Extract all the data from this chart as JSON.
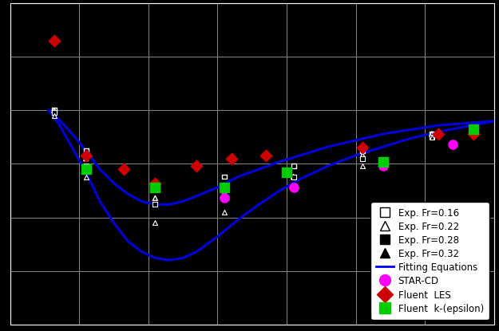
{
  "xlim": [
    0,
    3.5
  ],
  "ylim": [
    -2,
    1
  ],
  "xticks": [
    0,
    0.5,
    1.0,
    1.5,
    2.0,
    2.5,
    3.0,
    3.5
  ],
  "yticks": [
    -2.0,
    -1.5,
    -1.0,
    -0.5,
    0.0,
    0.5,
    1.0
  ],
  "bg_color": "#000000",
  "curve_color": "#0000dd",
  "grid_color": "#888888",
  "exp_fr016": [
    [
      0.32,
      0.0
    ],
    [
      0.55,
      -0.38
    ],
    [
      1.05,
      -0.68
    ],
    [
      1.55,
      -0.62
    ],
    [
      2.05,
      -0.52
    ],
    [
      2.55,
      -0.38
    ],
    [
      3.05,
      -0.22
    ],
    [
      3.35,
      -0.18
    ]
  ],
  "exp_fr022": [
    [
      0.32,
      0.0
    ],
    [
      0.55,
      -0.45
    ],
    [
      1.05,
      -0.82
    ],
    [
      1.55,
      -0.75
    ],
    [
      2.05,
      -0.62
    ],
    [
      2.55,
      -0.42
    ],
    [
      3.05,
      -0.22
    ],
    [
      3.35,
      -0.18
    ]
  ],
  "exp_fr028": [
    [
      0.32,
      -0.02
    ],
    [
      0.55,
      -0.52
    ],
    [
      1.05,
      -0.88
    ],
    [
      1.55,
      -0.82
    ],
    [
      2.05,
      -0.62
    ],
    [
      2.55,
      -0.45
    ],
    [
      3.05,
      -0.25
    ],
    [
      3.35,
      -0.18
    ]
  ],
  "exp_fr032": [
    [
      0.32,
      -0.05
    ],
    [
      0.55,
      -0.62
    ],
    [
      1.05,
      -1.05
    ],
    [
      1.55,
      -0.95
    ],
    [
      2.05,
      -0.72
    ],
    [
      2.55,
      -0.52
    ],
    [
      3.05,
      -0.25
    ],
    [
      3.35,
      -0.18
    ]
  ],
  "star_cd": [
    [
      1.55,
      -0.82
    ],
    [
      2.05,
      -0.72
    ],
    [
      2.7,
      -0.52
    ],
    [
      3.2,
      -0.32
    ]
  ],
  "fluent_les": [
    [
      0.32,
      0.65
    ],
    [
      0.55,
      -0.42
    ],
    [
      0.82,
      -0.55
    ],
    [
      1.05,
      -0.68
    ],
    [
      1.35,
      -0.52
    ],
    [
      1.6,
      -0.45
    ],
    [
      1.85,
      -0.42
    ],
    [
      2.55,
      -0.35
    ],
    [
      3.1,
      -0.22
    ],
    [
      3.35,
      -0.22
    ]
  ],
  "fluent_ke": [
    [
      0.55,
      -0.55
    ],
    [
      1.05,
      -0.72
    ],
    [
      1.55,
      -0.72
    ],
    [
      2.0,
      -0.58
    ],
    [
      2.7,
      -0.48
    ],
    [
      3.35,
      -0.18
    ]
  ],
  "upper_curve_x": [
    0.28,
    0.35,
    0.45,
    0.55,
    0.65,
    0.75,
    0.85,
    0.95,
    1.05,
    1.15,
    1.25,
    1.35,
    1.5,
    1.65,
    1.8,
    1.95,
    2.1,
    2.3,
    2.5,
    2.7,
    2.9,
    3.1,
    3.3,
    3.5
  ],
  "upper_curve_y": [
    0.0,
    -0.08,
    -0.22,
    -0.38,
    -0.55,
    -0.68,
    -0.78,
    -0.85,
    -0.88,
    -0.88,
    -0.85,
    -0.8,
    -0.72,
    -0.62,
    -0.55,
    -0.48,
    -0.42,
    -0.34,
    -0.28,
    -0.22,
    -0.18,
    -0.14,
    -0.12,
    -0.1
  ],
  "lower_curve_x": [
    0.28,
    0.35,
    0.45,
    0.55,
    0.65,
    0.75,
    0.85,
    0.95,
    1.05,
    1.15,
    1.25,
    1.35,
    1.5,
    1.65,
    1.8,
    1.95,
    2.1,
    2.3,
    2.5,
    2.7,
    2.9,
    3.1,
    3.3,
    3.5
  ],
  "lower_curve_y": [
    0.0,
    -0.12,
    -0.35,
    -0.58,
    -0.85,
    -1.05,
    -1.22,
    -1.32,
    -1.38,
    -1.4,
    -1.38,
    -1.32,
    -1.18,
    -1.02,
    -0.88,
    -0.75,
    -0.64,
    -0.52,
    -0.42,
    -0.34,
    -0.26,
    -0.2,
    -0.15,
    -0.1
  ]
}
